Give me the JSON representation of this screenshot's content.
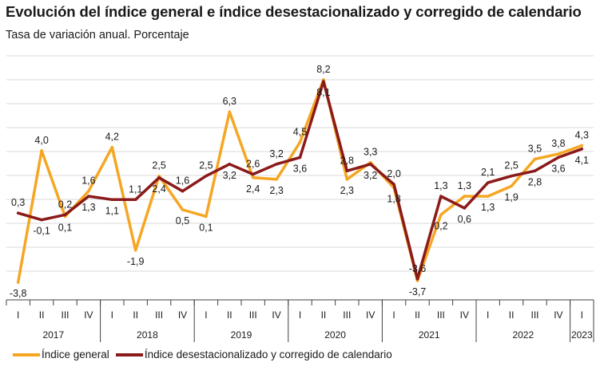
{
  "title": "Evolución del índice general e índice desestacionalizado y corregido de calendario",
  "subtitle": "Tasa de variación anual. Porcentaje",
  "colors": {
    "general": "#F5A623",
    "desest": "#8B1A1A",
    "grid": "#D9D9D9",
    "axis": "#404040"
  },
  "chart_data": {
    "type": "line",
    "x": [
      "I",
      "II",
      "III",
      "IV",
      "I",
      "II",
      "III",
      "IV",
      "I",
      "II",
      "III",
      "IV",
      "I",
      "II",
      "III",
      "IV",
      "I",
      "II",
      "III",
      "IV",
      "I",
      "II",
      "III",
      "IV",
      "I"
    ],
    "years": [
      {
        "label": "2017",
        "start": 0,
        "count": 4
      },
      {
        "label": "2018",
        "start": 4,
        "count": 4
      },
      {
        "label": "2019",
        "start": 8,
        "count": 4
      },
      {
        "label": "2020",
        "start": 12,
        "count": 4
      },
      {
        "label": "2021",
        "start": 16,
        "count": 4
      },
      {
        "label": "2022",
        "start": 20,
        "count": 4
      },
      {
        "label": "2023",
        "start": 24,
        "count": 1
      }
    ],
    "ylim": [
      -4,
      10
    ],
    "grid": true,
    "legend_position": "bottom",
    "series": [
      {
        "key": "general",
        "name": "Índice general",
        "values": [
          -3.8,
          4.0,
          0.1,
          1.6,
          4.2,
          -1.9,
          2.5,
          0.5,
          0.1,
          6.3,
          2.4,
          2.3,
          4.5,
          8.2,
          2.3,
          3.3,
          1.8,
          -3.7,
          0.2,
          1.3,
          1.3,
          1.9,
          3.5,
          3.8,
          4.3
        ],
        "labels": [
          "-3,8",
          "4,0",
          "0,1",
          "1,6",
          "4,2",
          "-1,9",
          "2,5",
          "0,5",
          "0,1",
          "6,3",
          "2,4",
          "2,3",
          "4,5",
          "8,2",
          "2,3",
          "3,3",
          "1,8",
          "-3,7",
          "0,2",
          "1,3",
          "1,3",
          "1,9",
          "3,5",
          "3,8",
          "4,3"
        ]
      },
      {
        "key": "desest",
        "name": "Índice desestacionalizado y corregido de calendario",
        "values": [
          0.3,
          -0.1,
          0.2,
          1.3,
          1.1,
          1.1,
          2.4,
          1.6,
          2.5,
          3.2,
          2.6,
          3.2,
          3.6,
          8.1,
          2.8,
          3.2,
          2.0,
          -3.6,
          1.3,
          0.6,
          2.1,
          2.5,
          2.8,
          3.6,
          4.1
        ],
        "labels": [
          "0,3",
          "-0,1",
          "0,2",
          "1,3",
          "1,1",
          "1,1",
          "2,4",
          "1,6",
          "2,5",
          "3,2",
          "2,6",
          "3,2",
          "3,6",
          "8,1",
          "2,8",
          "3,2",
          "2,0",
          "-3,6",
          "1,3",
          "0,6",
          "2,1",
          "2,5",
          "2,8",
          "3,6",
          "4,1"
        ]
      }
    ]
  }
}
